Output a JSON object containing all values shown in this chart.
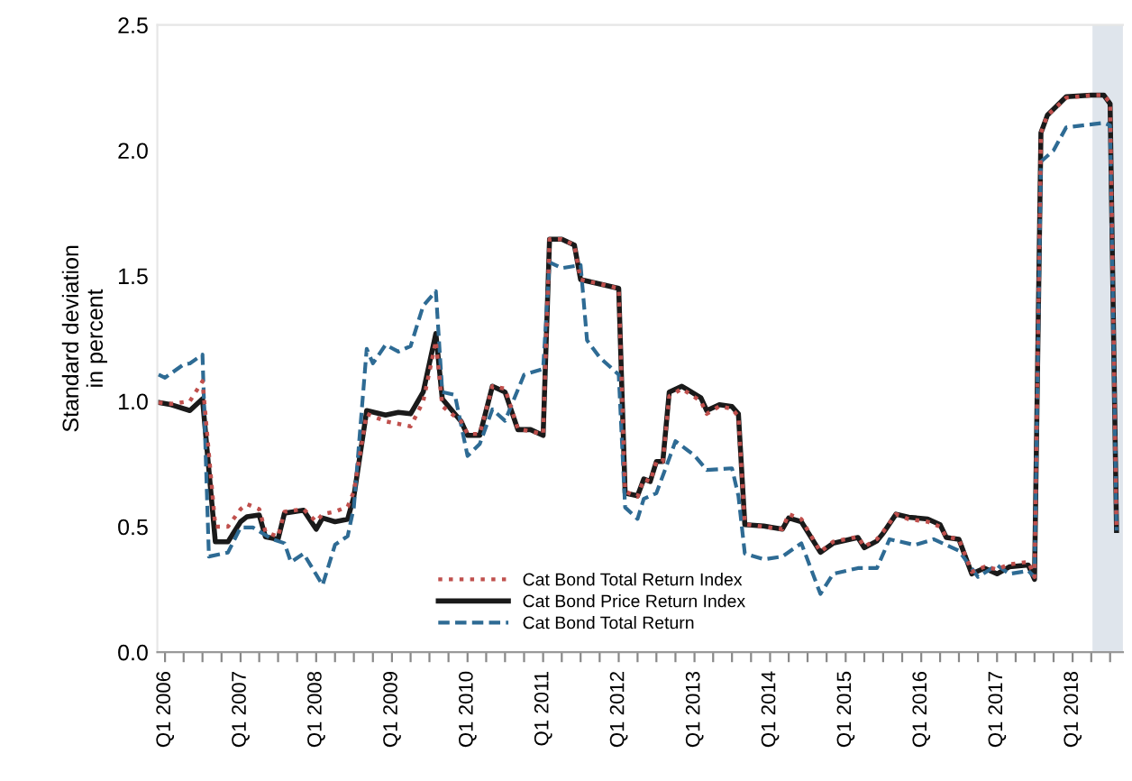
{
  "chart_data": {
    "type": "line",
    "ylabel": "Standard deviation\nin percent",
    "xlim": [
      "2005-11-25",
      "2018-09-01"
    ],
    "ylim": [
      0,
      2.5
    ],
    "yticks": [
      {
        "value": 0,
        "label": "0.0"
      },
      {
        "value": 0.5,
        "label": "0.5"
      },
      {
        "value": 1,
        "label": "1.0"
      },
      {
        "value": 1.5,
        "label": "1.5"
      },
      {
        "value": 2,
        "label": "2.0"
      },
      {
        "value": 2.5,
        "label": "2.5"
      }
    ],
    "xticks": [
      {
        "value": "2006-01",
        "label": "Q1 2006"
      },
      {
        "value": "2006-04",
        "label": null
      },
      {
        "value": "2006-07",
        "label": null
      },
      {
        "value": "2006-10",
        "label": null
      },
      {
        "value": "2007-01",
        "label": "Q1 2007"
      },
      {
        "value": "2007-04",
        "label": null
      },
      {
        "value": "2007-07",
        "label": null
      },
      {
        "value": "2007-10",
        "label": null
      },
      {
        "value": "2008-01",
        "label": "Q1 2008"
      },
      {
        "value": "2008-04",
        "label": null
      },
      {
        "value": "2008-07",
        "label": null
      },
      {
        "value": "2008-10",
        "label": null
      },
      {
        "value": "2009-01",
        "label": "Q1 2009"
      },
      {
        "value": "2009-04",
        "label": null
      },
      {
        "value": "2009-07",
        "label": null
      },
      {
        "value": "2009-10",
        "label": null
      },
      {
        "value": "2010-01",
        "label": "Q1 2010"
      },
      {
        "value": "2010-04",
        "label": null
      },
      {
        "value": "2010-07",
        "label": null
      },
      {
        "value": "2010-10",
        "label": null
      },
      {
        "value": "2011-01",
        "label": "Q1 2011"
      },
      {
        "value": "2011-04",
        "label": null
      },
      {
        "value": "2011-07",
        "label": null
      },
      {
        "value": "2011-10",
        "label": null
      },
      {
        "value": "2012-01",
        "label": "Q1 2012"
      },
      {
        "value": "2012-04",
        "label": null
      },
      {
        "value": "2012-07",
        "label": null
      },
      {
        "value": "2012-10",
        "label": null
      },
      {
        "value": "2013-01",
        "label": "Q1 2013"
      },
      {
        "value": "2013-04",
        "label": null
      },
      {
        "value": "2013-07",
        "label": null
      },
      {
        "value": "2013-10",
        "label": null
      },
      {
        "value": "2014-01",
        "label": "Q1 2014"
      },
      {
        "value": "2014-04",
        "label": null
      },
      {
        "value": "2014-07",
        "label": null
      },
      {
        "value": "2014-10",
        "label": null
      },
      {
        "value": "2015-01",
        "label": "Q1 2015"
      },
      {
        "value": "2015-04",
        "label": null
      },
      {
        "value": "2015-07",
        "label": null
      },
      {
        "value": "2015-10",
        "label": null
      },
      {
        "value": "2016-01",
        "label": "Q1 2016"
      },
      {
        "value": "2016-04",
        "label": null
      },
      {
        "value": "2016-07",
        "label": null
      },
      {
        "value": "2016-10",
        "label": null
      },
      {
        "value": "2017-01",
        "label": "Q1 2017"
      },
      {
        "value": "2017-04",
        "label": null
      },
      {
        "value": "2017-07",
        "label": null
      },
      {
        "value": "2017-10",
        "label": null
      },
      {
        "value": "2018-01",
        "label": "Q1 2018"
      },
      {
        "value": "2018-04",
        "label": null
      },
      {
        "value": "2018-07",
        "label": null
      }
    ],
    "bands": [
      {
        "axis": "x",
        "from": "2018-04-07",
        "to": "2018-09-01",
        "color": "#dfe5ec"
      }
    ],
    "grid": false,
    "legend": "bottom",
    "series": [
      {
        "name": "Cat Bond Total Return Index",
        "color": "#c0504d",
        "line_style": "dotted",
        "x": [
          "2005-12",
          "2006-02",
          "2006-05",
          "2006-07",
          "2006-09",
          "2006-11",
          "2007-01",
          "2007-02",
          "2007-04",
          "2007-05",
          "2007-07",
          "2007-08",
          "2007-11",
          "2008-01",
          "2008-02",
          "2008-04",
          "2008-06",
          "2008-07",
          "2008-09",
          "2008-12",
          "2009-02",
          "2009-04",
          "2009-06",
          "2009-08",
          "2009-09",
          "2009-12",
          "2010-01",
          "2010-03",
          "2010-05",
          "2010-07",
          "2010-09",
          "2010-11",
          "2011-01",
          "2011-02",
          "2011-04",
          "2011-06",
          "2011-07",
          "2011-11",
          "2012-01",
          "2012-02",
          "2012-04",
          "2012-05",
          "2012-06",
          "2012-07",
          "2012-08",
          "2012-09",
          "2012-11",
          "2013-02",
          "2013-03",
          "2013-05",
          "2013-07",
          "2013-08",
          "2013-09",
          "2013-12",
          "2014-03",
          "2014-04",
          "2014-06",
          "2014-09",
          "2014-11",
          "2015-03",
          "2015-04",
          "2015-06",
          "2015-07",
          "2015-09",
          "2015-11",
          "2016-02",
          "2016-04",
          "2016-05",
          "2016-07",
          "2016-09",
          "2016-11",
          "2017-01",
          "2017-03",
          "2017-06",
          "2017-07",
          "2017-08",
          "2017-09",
          "2017-12",
          "2018-04",
          "2018-06",
          "2018-07",
          "2018-08"
        ],
        "values": [
          0.995,
          0.99,
          1.0,
          1.08,
          0.5,
          0.5,
          0.57,
          0.59,
          0.57,
          0.48,
          0.46,
          0.56,
          0.57,
          0.52,
          0.55,
          0.56,
          0.58,
          0.64,
          0.95,
          0.92,
          0.91,
          0.9,
          1.0,
          1.24,
          0.98,
          0.92,
          0.87,
          0.87,
          1.06,
          1.05,
          0.89,
          0.88,
          0.87,
          1.646,
          1.646,
          1.623,
          1.485,
          1.462,
          1.45,
          0.64,
          0.62,
          0.69,
          0.68,
          0.76,
          0.76,
          1.02,
          1.05,
          1.0,
          0.95,
          0.98,
          0.97,
          0.94,
          0.51,
          0.5,
          0.49,
          0.55,
          0.53,
          0.4,
          0.44,
          0.46,
          0.42,
          0.45,
          0.48,
          0.55,
          0.53,
          0.52,
          0.5,
          0.46,
          0.45,
          0.32,
          0.34,
          0.33,
          0.35,
          0.36,
          0.3,
          2.07,
          2.14,
          2.21,
          2.22,
          2.22,
          2.19,
          0.49
        ]
      },
      {
        "name": "Cat Bond Price Return Index",
        "color": "#1a1a1a",
        "line_style": "solid",
        "x": [
          "2005-12",
          "2006-02",
          "2006-05",
          "2006-07",
          "2006-09",
          "2006-11",
          "2007-01",
          "2007-02",
          "2007-04",
          "2007-05",
          "2007-07",
          "2007-08",
          "2007-11",
          "2008-01",
          "2008-02",
          "2008-04",
          "2008-06",
          "2008-07",
          "2008-09",
          "2008-12",
          "2009-02",
          "2009-04",
          "2009-06",
          "2009-08",
          "2009-09",
          "2009-12",
          "2010-01",
          "2010-03",
          "2010-05",
          "2010-07",
          "2010-09",
          "2010-11",
          "2011-01",
          "2011-02",
          "2011-04",
          "2011-06",
          "2011-07",
          "2011-11",
          "2012-01",
          "2012-02",
          "2012-04",
          "2012-05",
          "2012-06",
          "2012-07",
          "2012-08",
          "2012-09",
          "2012-11",
          "2013-02",
          "2013-03",
          "2013-05",
          "2013-07",
          "2013-08",
          "2013-09",
          "2013-12",
          "2014-03",
          "2014-04",
          "2014-06",
          "2014-09",
          "2014-11",
          "2015-03",
          "2015-04",
          "2015-06",
          "2015-07",
          "2015-09",
          "2015-11",
          "2016-02",
          "2016-04",
          "2016-05",
          "2016-07",
          "2016-09",
          "2016-11",
          "2017-01",
          "2017-03",
          "2017-06",
          "2017-07",
          "2017-08",
          "2017-09",
          "2017-12",
          "2018-04",
          "2018-06",
          "2018-07",
          "2018-08"
        ],
        "values": [
          0.995,
          0.986,
          0.963,
          1.01,
          0.44,
          0.44,
          0.52,
          0.54,
          0.547,
          0.46,
          0.45,
          0.554,
          0.566,
          0.49,
          0.535,
          0.52,
          0.53,
          0.62,
          0.963,
          0.945,
          0.956,
          0.95,
          1.037,
          1.27,
          1.01,
          0.92,
          0.864,
          0.864,
          1.06,
          1.037,
          0.887,
          0.887,
          0.864,
          1.646,
          1.646,
          1.623,
          1.485,
          1.462,
          1.45,
          0.634,
          0.623,
          0.69,
          0.68,
          0.76,
          0.76,
          1.037,
          1.06,
          1.014,
          0.963,
          0.986,
          0.979,
          0.95,
          0.508,
          0.503,
          0.49,
          0.535,
          0.52,
          0.398,
          0.434,
          0.457,
          0.416,
          0.443,
          0.474,
          0.55,
          0.538,
          0.531,
          0.508,
          0.457,
          0.45,
          0.312,
          0.335,
          0.312,
          0.34,
          0.347,
          0.29,
          2.07,
          2.14,
          2.214,
          2.22,
          2.22,
          2.186,
          0.485
        ]
      },
      {
        "name": "Cat Bond Total Return",
        "color": "#2e6b94",
        "line_style": "dashed",
        "x": [
          "2005-12",
          "2006-01",
          "2006-04",
          "2006-05",
          "2006-07",
          "2006-08",
          "2006-11",
          "2007-01",
          "2007-03",
          "2007-06",
          "2007-08",
          "2007-09",
          "2007-11",
          "2008-02",
          "2008-04",
          "2008-06",
          "2008-07",
          "2008-09",
          "2008-10",
          "2008-12",
          "2009-02",
          "2009-04",
          "2009-06",
          "2009-08",
          "2009-09",
          "2009-11",
          "2010-01",
          "2010-03",
          "2010-05",
          "2010-07",
          "2010-10",
          "2011-01",
          "2011-02",
          "2011-04",
          "2011-07",
          "2011-08",
          "2011-10",
          "2012-01",
          "2012-02",
          "2012-04",
          "2012-05",
          "2012-07",
          "2012-09",
          "2012-10",
          "2013-01",
          "2013-03",
          "2013-07",
          "2013-08",
          "2013-09",
          "2013-12",
          "2014-03",
          "2014-06",
          "2014-09",
          "2014-11",
          "2015-03",
          "2015-06",
          "2015-08",
          "2015-12",
          "2016-03",
          "2016-07",
          "2016-10",
          "2017-01",
          "2017-03",
          "2017-06",
          "2017-07",
          "2017-08",
          "2017-10",
          "2017-12",
          "2018-06",
          "2018-07",
          "2018-08"
        ],
        "values": [
          1.106,
          1.094,
          1.147,
          1.151,
          1.186,
          0.381,
          0.397,
          0.497,
          0.497,
          0.451,
          0.434,
          0.359,
          0.393,
          0.267,
          0.428,
          0.462,
          0.577,
          1.209,
          1.151,
          1.225,
          1.198,
          1.22,
          1.381,
          1.439,
          1.037,
          1.025,
          0.782,
          0.83,
          0.968,
          0.922,
          1.106,
          1.129,
          1.554,
          1.531,
          1.543,
          1.243,
          1.175,
          1.106,
          0.577,
          0.531,
          0.611,
          0.634,
          0.772,
          0.841,
          0.784,
          0.726,
          0.733,
          0.623,
          0.393,
          0.37,
          0.381,
          0.434,
          0.232,
          0.312,
          0.335,
          0.335,
          0.45,
          0.427,
          0.45,
          0.404,
          0.3,
          0.347,
          0.312,
          0.324,
          0.3,
          1.955,
          2.0,
          2.092,
          2.11,
          2.1,
          0.485
        ]
      }
    ]
  }
}
